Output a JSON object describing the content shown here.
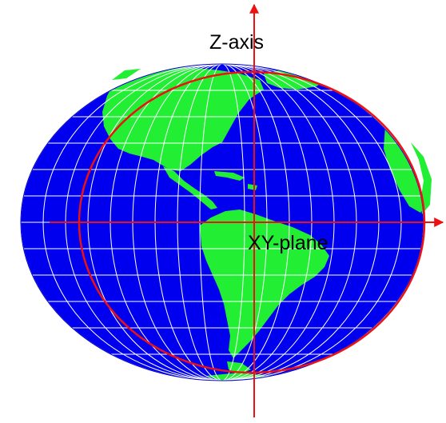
{
  "labels": {
    "z_axis": "Z-axis",
    "xy_plane": "XY-plane"
  },
  "colors": {
    "ocean": "#0000ee",
    "land": "#22ee33",
    "graticule": "#ffffff",
    "axis": "#ee1111",
    "text": "#000000"
  },
  "graticule": {
    "meridian_count": 18,
    "parallel_count": 11
  }
}
